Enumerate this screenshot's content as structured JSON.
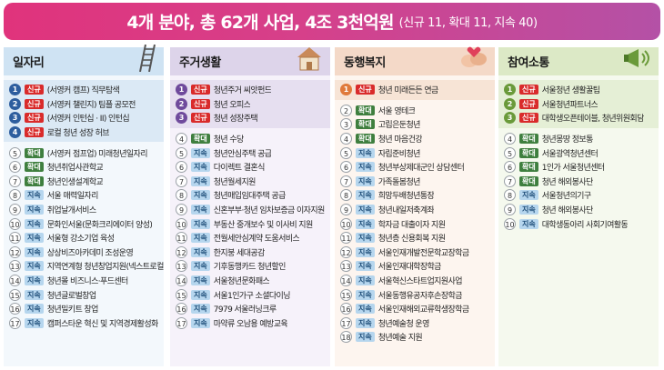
{
  "header": {
    "main": "4개 분야, 총 62개 사업, 4조 3천억원",
    "sub": "(신규 11, 확대 11, 지속 40)"
  },
  "colors": {
    "new": "#d92b2b",
    "expand": "#3f7f3f",
    "continue": "#b6d6ee"
  },
  "columns": [
    {
      "key": "jobs",
      "title": "일자리",
      "icon": "ladder-icon",
      "head_color": "#cfe3f3",
      "num_color": "#2e5e9e",
      "top": [
        {
          "n": "1",
          "tag": "신규",
          "label": "(서영커 캠프) 직무탐색"
        },
        {
          "n": "2",
          "tag": "신규",
          "label": "(서영커 챌린지) 팀플 공모전"
        },
        {
          "n": "3",
          "tag": "신규",
          "label": "(서영커 인턴십 · II) 인턴십"
        },
        {
          "n": "4",
          "tag": "신규",
          "label": "로컬 청년 성장 허브"
        }
      ],
      "bottom": [
        {
          "n": "5",
          "tag": "확대",
          "label": "(서영커 점프업) 미래청년일자리"
        },
        {
          "n": "6",
          "tag": "확대",
          "label": "청년취업사관학교"
        },
        {
          "n": "7",
          "tag": "확대",
          "label": "청년인생설계학교"
        },
        {
          "n": "8",
          "tag": "지속",
          "label": "서울 매력일자리"
        },
        {
          "n": "9",
          "tag": "지속",
          "label": "취업날개서비스"
        },
        {
          "n": "10",
          "tag": "지속",
          "label": "문화인서울(문화크리에이터 양성)"
        },
        {
          "n": "11",
          "tag": "지속",
          "label": "서울형 강소기업 육성"
        },
        {
          "n": "12",
          "tag": "지속",
          "label": "상상비즈아카데미 조성운영"
        },
        {
          "n": "13",
          "tag": "지속",
          "label": "지역연계형 청년창업지원(넥스트로컬)"
        },
        {
          "n": "14",
          "tag": "지속",
          "label": "청년몰 비즈니스·푸드센터"
        },
        {
          "n": "15",
          "tag": "지속",
          "label": "청년글로벌창업"
        },
        {
          "n": "16",
          "tag": "지속",
          "label": "청년밀키트 창업"
        },
        {
          "n": "17",
          "tag": "지속",
          "label": "캠퍼스타운 혁신 및 지역경제활성화"
        }
      ]
    },
    {
      "key": "housing",
      "title": "주거생활",
      "icon": "house-icon",
      "head_color": "#ddd4ea",
      "num_color": "#6f4a9c",
      "top": [
        {
          "n": "1",
          "tag": "신규",
          "label": "청년주거 씨앗펀드"
        },
        {
          "n": "2",
          "tag": "신규",
          "label": "청년 오피스"
        },
        {
          "n": "3",
          "tag": "신규",
          "label": "청년 성장주택"
        }
      ],
      "bottom": [
        {
          "n": "4",
          "tag": "확대",
          "label": "청년 수당"
        },
        {
          "n": "5",
          "tag": "지속",
          "label": "청년안심주택 공급"
        },
        {
          "n": "6",
          "tag": "지속",
          "label": "다이렉트 결혼식"
        },
        {
          "n": "7",
          "tag": "지속",
          "label": "청년월세지원"
        },
        {
          "n": "8",
          "tag": "지속",
          "label": "청년매입임대주택 공급"
        },
        {
          "n": "9",
          "tag": "지속",
          "label": "신혼부부·청년 임차보증금 이자지원"
        },
        {
          "n": "10",
          "tag": "지속",
          "label": "부동산 중개보수 및 이사비 지원"
        },
        {
          "n": "11",
          "tag": "지속",
          "label": "전월세안심계약 도움서비스"
        },
        {
          "n": "12",
          "tag": "지속",
          "label": "한지붕 세대공감"
        },
        {
          "n": "13",
          "tag": "지속",
          "label": "기후동행카드 청년할인"
        },
        {
          "n": "14",
          "tag": "지속",
          "label": "서울청년문화패스"
        },
        {
          "n": "15",
          "tag": "지속",
          "label": "서울1인가구 소셜다이닝"
        },
        {
          "n": "16",
          "tag": "지속",
          "label": "7979 서울러닝크루"
        },
        {
          "n": "17",
          "tag": "지속",
          "label": "마약류 오남용 예방교육"
        }
      ]
    },
    {
      "key": "welfare",
      "title": "동행복지",
      "icon": "hands-icon",
      "head_color": "#f4d9c8",
      "num_color": "#e07a3c",
      "top": [
        {
          "n": "1",
          "tag": "신규",
          "label": "청년 미래든든 연금"
        }
      ],
      "bottom": [
        {
          "n": "2",
          "tag": "확대",
          "label": "서울 영테크"
        },
        {
          "n": "3",
          "tag": "확대",
          "label": "고립은둔청년"
        },
        {
          "n": "4",
          "tag": "확대",
          "label": "청년 마음건강"
        },
        {
          "n": "5",
          "tag": "지속",
          "label": "자립준비청년"
        },
        {
          "n": "6",
          "tag": "지속",
          "label": "청년부상제대군인 상담센터"
        },
        {
          "n": "7",
          "tag": "지속",
          "label": "가족돌봄청년"
        },
        {
          "n": "8",
          "tag": "지속",
          "label": "희망두배청년통장"
        },
        {
          "n": "9",
          "tag": "지속",
          "label": "청년내일저축계좌"
        },
        {
          "n": "10",
          "tag": "지속",
          "label": "학자금 대출이자 지원"
        },
        {
          "n": "11",
          "tag": "지속",
          "label": "청년층 신용회복 지원"
        },
        {
          "n": "12",
          "tag": "지속",
          "label": "서울인재개발전문학교장학금"
        },
        {
          "n": "13",
          "tag": "지속",
          "label": "서울인재대학장학금"
        },
        {
          "n": "14",
          "tag": "지속",
          "label": "서울혁신스타트업지원사업"
        },
        {
          "n": "15",
          "tag": "지속",
          "label": "서울동행유공자후손장학금"
        },
        {
          "n": "16",
          "tag": "지속",
          "label": "서울인재해외교류학생장학금"
        },
        {
          "n": "17",
          "tag": "지속",
          "label": "청년예술청 운영"
        },
        {
          "n": "18",
          "tag": "지속",
          "label": "청년예술 지원"
        }
      ]
    },
    {
      "key": "participation",
      "title": "참여소통",
      "icon": "megaphone-icon",
      "head_color": "#dce9c6",
      "num_color": "#6a9a3a",
      "top": [
        {
          "n": "1",
          "tag": "신규",
          "label": "서울청년 생활꿀팁"
        },
        {
          "n": "2",
          "tag": "신규",
          "label": "서울청년파트너스"
        },
        {
          "n": "3",
          "tag": "신규",
          "label": "대학생오픈테이블, 청년위원회담"
        }
      ],
      "bottom": [
        {
          "n": "4",
          "tag": "확대",
          "label": "청년몽땅 정보통"
        },
        {
          "n": "5",
          "tag": "확대",
          "label": "서울광역청년센터"
        },
        {
          "n": "6",
          "tag": "확대",
          "label": "1인가 서울청년센터"
        },
        {
          "n": "7",
          "tag": "확대",
          "label": "청년 해외봉사단"
        },
        {
          "n": "8",
          "tag": "지속",
          "label": "서울청년의기구"
        },
        {
          "n": "9",
          "tag": "지속",
          "label": "청년 해외봉사단"
        },
        {
          "n": "10",
          "tag": "지속",
          "label": "대학생동아리 사회기여활동"
        }
      ]
    }
  ]
}
